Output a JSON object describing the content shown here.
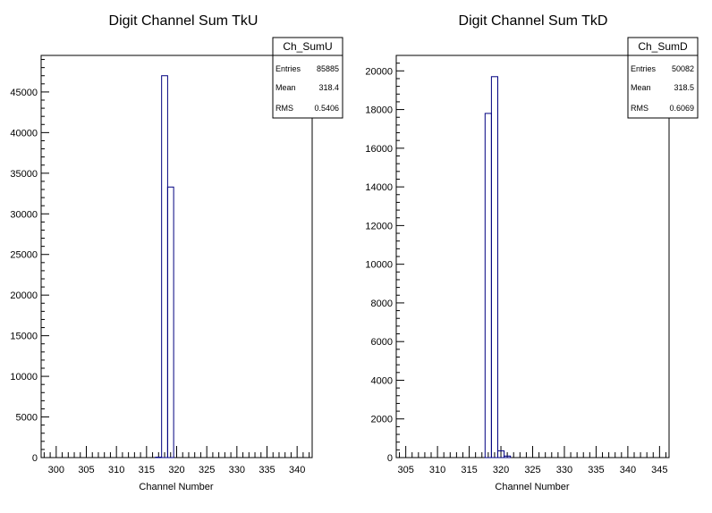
{
  "chart_data": [
    {
      "type": "bar",
      "title": "Digit Channel Sum TkU",
      "xlabel": "Channel Number",
      "ylabel": "",
      "xlim": [
        297.5,
        342.5
      ],
      "ylim": [
        0,
        49500
      ],
      "xticks": [
        300,
        305,
        310,
        315,
        320,
        325,
        330,
        335,
        340
      ],
      "yticks": [
        0,
        5000,
        10000,
        15000,
        20000,
        25000,
        30000,
        35000,
        40000,
        45000
      ],
      "bin_width": 1,
      "bins": [
        {
          "x0": 316.5,
          "x1": 317.5,
          "value": 50
        },
        {
          "x0": 317.5,
          "x1": 318.5,
          "value": 47000
        },
        {
          "x0": 318.5,
          "x1": 319.5,
          "value": 33300
        },
        {
          "x0": 319.5,
          "x1": 320.5,
          "value": 0
        }
      ],
      "line_color": "#000080",
      "stats": {
        "name": "Ch_SumU",
        "rows": [
          {
            "label": "Entries",
            "value": "85885"
          },
          {
            "label": "Mean",
            "value": "318.4"
          },
          {
            "label": "RMS",
            "value": "0.5406"
          }
        ]
      }
    },
    {
      "type": "bar",
      "title": "Digit Channel Sum TkD",
      "xlabel": "Channel Number",
      "ylabel": "",
      "xlim": [
        303.5,
        346.5
      ],
      "ylim": [
        0,
        20800
      ],
      "xticks": [
        305,
        310,
        315,
        320,
        325,
        330,
        335,
        340,
        345
      ],
      "yticks": [
        0,
        2000,
        4000,
        6000,
        8000,
        10000,
        12000,
        14000,
        16000,
        18000,
        20000
      ],
      "bin_width": 1,
      "bins": [
        {
          "x0": 317.5,
          "x1": 318.5,
          "value": 17800
        },
        {
          "x0": 318.5,
          "x1": 319.5,
          "value": 19700
        },
        {
          "x0": 319.5,
          "x1": 320.5,
          "value": 350
        },
        {
          "x0": 320.5,
          "x1": 321.5,
          "value": 80
        }
      ],
      "line_color": "#000080",
      "stats": {
        "name": "Ch_SumD",
        "rows": [
          {
            "label": "Entries",
            "value": "50082"
          },
          {
            "label": "Mean",
            "value": "318.5"
          },
          {
            "label": "RMS",
            "value": "0.6069"
          }
        ]
      }
    }
  ]
}
